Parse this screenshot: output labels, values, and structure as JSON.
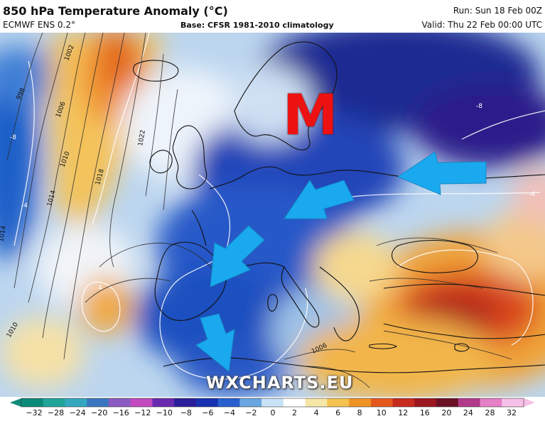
{
  "header": {
    "title": "850 hPa Temperature Anomaly (°C)",
    "model": "ECMWF ENS 0.2°",
    "base": "Base: CFSR 1981-2010 climatology",
    "run": "Run: Sun 18 Feb 00Z",
    "valid": "Valid: Thu 22 Feb 00:00 UTC"
  },
  "map": {
    "watermark": "WXCHARTS.EU",
    "marker_letter": "M",
    "marker_color": "#ee1111",
    "arrow_color": "#1aa9ee",
    "arrow_count": 4,
    "isobar_labels": [
      "998",
      "1002",
      "1006",
      "1010",
      "1014",
      "1018",
      "1022",
      "1014",
      "1010",
      "1006"
    ],
    "anomaly_labels": [
      "-8",
      "-8",
      "-4",
      "4",
      "-4"
    ]
  },
  "colorbar": {
    "ticks": [
      "−32",
      "−28",
      "−24",
      "−20",
      "−16",
      "−12",
      "−10",
      "−8",
      "−6",
      "−4",
      "−2",
      "0",
      "2",
      "4",
      "6",
      "8",
      "10",
      "12",
      "16",
      "20",
      "24",
      "28",
      "32"
    ],
    "colors": [
      "#0e8a7a",
      "#1fa59a",
      "#35a8c0",
      "#3a77c2",
      "#8b5bc1",
      "#c24bc0",
      "#6a2ab0",
      "#2a1e9a",
      "#1630b0",
      "#2860d0",
      "#6aa6e0",
      "#c8e2f6",
      "#ffffff",
      "#f6e7a8",
      "#f4c24e",
      "#ef9325",
      "#e5591f",
      "#c72a1f",
      "#9b1620",
      "#6a1025",
      "#b23a8a",
      "#e57fc6",
      "#f6c0e8"
    ]
  }
}
